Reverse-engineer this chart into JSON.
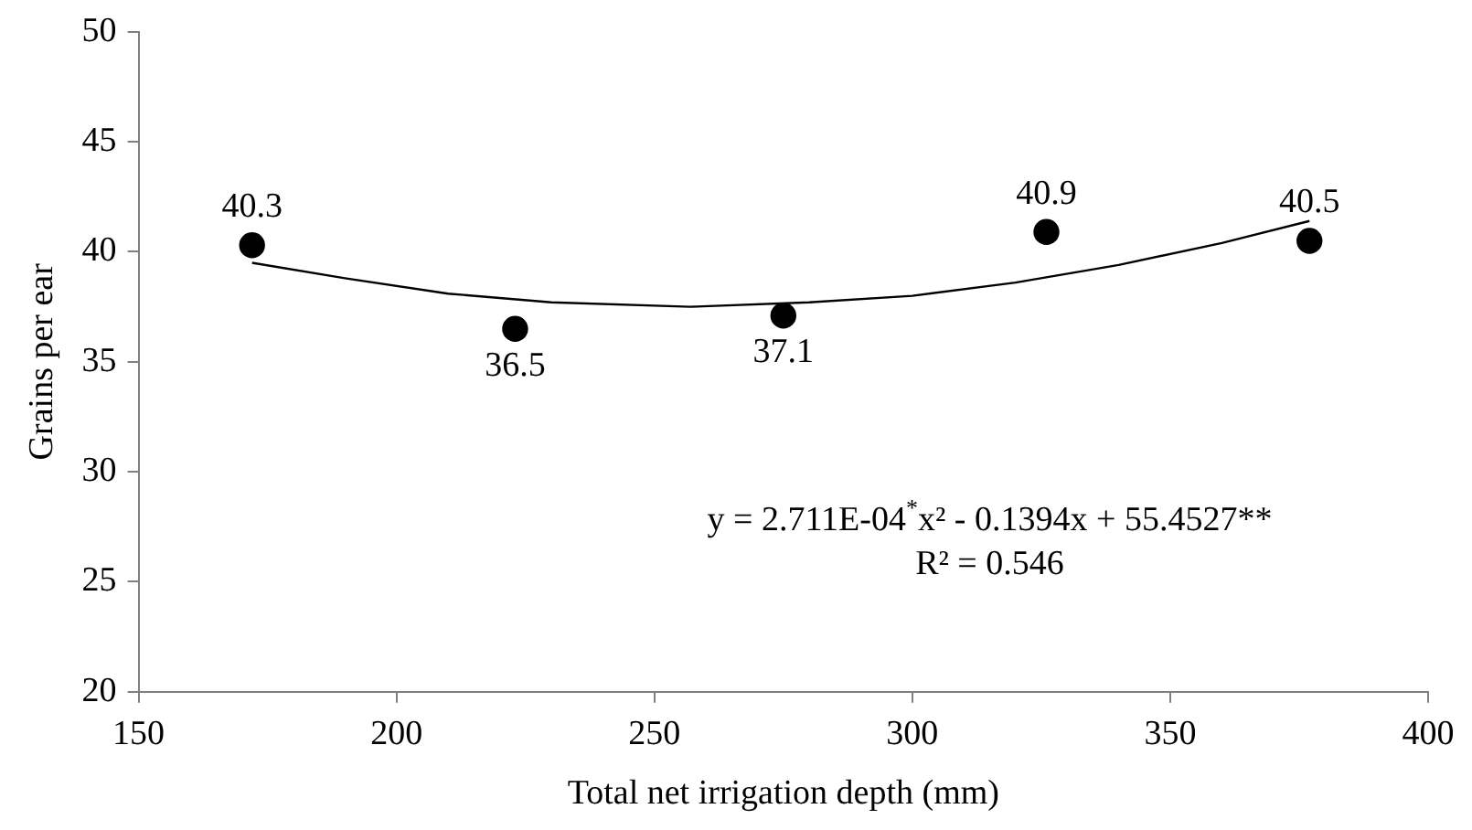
{
  "chart_data": {
    "type": "scatter",
    "xlabel": "Total net irrigation depth (mm)",
    "ylabel": "Grains per ear",
    "series": [
      {
        "color": "#000000",
        "marker": "circle",
        "x": [
          172,
          223,
          275,
          326,
          377
        ],
        "values": [
          40.3,
          36.5,
          37.1,
          40.9,
          40.5
        ],
        "value_labels": [
          "40.3",
          "36.5",
          "37.1",
          "40.9",
          "40.5"
        ]
      },
      {
        "type": "line",
        "color": "#000000",
        "marker": "none",
        "line_style": "solid",
        "x": [
          172,
          190,
          210,
          230,
          257,
          280,
          300,
          320,
          340,
          360,
          377
        ],
        "values": [
          39.5,
          38.8,
          38.1,
          37.7,
          37.5,
          37.7,
          38.0,
          38.6,
          39.4,
          40.4,
          41.4
        ]
      }
    ],
    "xlim": [
      150,
      400
    ],
    "xticks": [
      150,
      200,
      250,
      300,
      350,
      400
    ],
    "ylim": [
      20,
      50
    ],
    "yticks": [
      20,
      25,
      30,
      35,
      40,
      45,
      50
    ],
    "grid": false,
    "legend": false,
    "annotations": [
      "y = 2.711E-04$^{*}$x² - 0.1394x + 55.4527**",
      "R² = 0.546"
    ]
  }
}
